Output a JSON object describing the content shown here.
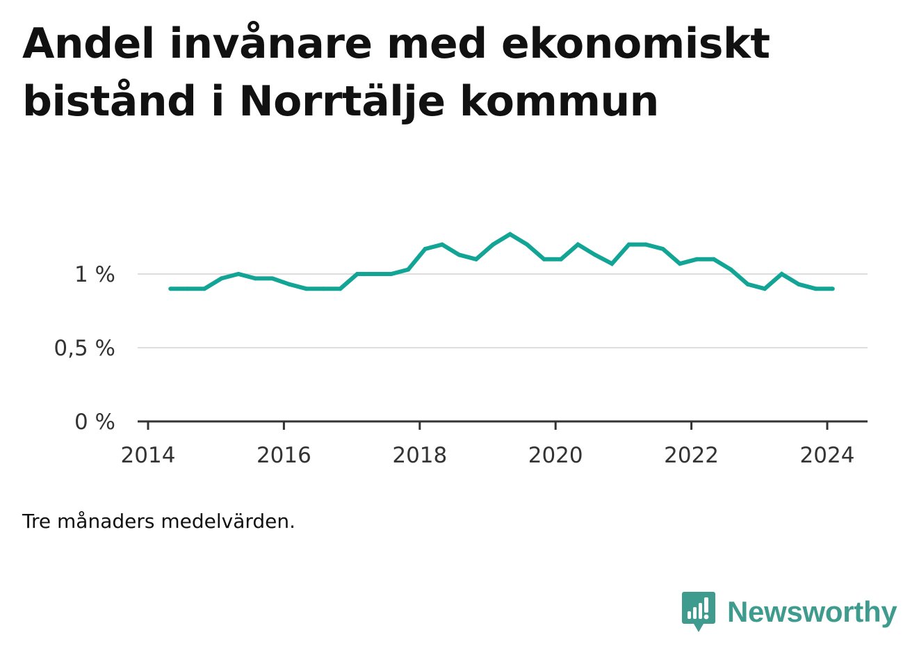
{
  "title": "Andel invånare med ekonomiskt bistånd i Norrtälje kommun",
  "note": "Tre månaders medelvärden.",
  "brand": {
    "name": "Newsworthy",
    "icon": "bar-chart-speech-bubble-icon",
    "color": "#3e9b8e"
  },
  "colors": {
    "line": "#12a596",
    "grid": "#dddddd",
    "axis": "#333333"
  },
  "chart_data": {
    "type": "line",
    "title": "Andel invånare med ekonomiskt bistånd i Norrtälje kommun",
    "xlabel": "",
    "ylabel": "",
    "x_ticks": [
      "2014",
      "2016",
      "2018",
      "2020",
      "2022",
      "2024"
    ],
    "y_ticks": [
      "0 %",
      "0,5 %",
      "1 %"
    ],
    "ylim": [
      0,
      1.3
    ],
    "grid": true,
    "legend": "none",
    "series": [
      {
        "x": [
          2014.33,
          2014.58,
          2014.83,
          2015.08,
          2015.33,
          2015.58,
          2015.83,
          2016.08,
          2016.33,
          2016.58,
          2016.83,
          2017.08,
          2017.33,
          2017.58,
          2017.83,
          2018.08,
          2018.33,
          2018.58,
          2018.83,
          2019.08,
          2019.33,
          2019.58,
          2019.83,
          2020.08,
          2020.33,
          2020.58,
          2020.83,
          2021.08,
          2021.33,
          2021.58,
          2021.83,
          2022.08,
          2022.33,
          2022.58,
          2022.83,
          2023.08,
          2023.33,
          2023.58,
          2023.83,
          2024.08
        ],
        "values": [
          0.9,
          0.9,
          0.9,
          0.97,
          1.0,
          0.97,
          0.97,
          0.93,
          0.9,
          0.9,
          0.9,
          1.0,
          1.0,
          1.0,
          1.03,
          1.17,
          1.2,
          1.13,
          1.1,
          1.2,
          1.27,
          1.2,
          1.1,
          1.1,
          1.2,
          1.13,
          1.07,
          1.2,
          1.2,
          1.17,
          1.07,
          1.1,
          1.1,
          1.03,
          0.93,
          0.9,
          1.0,
          0.93,
          0.9,
          0.9
        ]
      }
    ]
  }
}
